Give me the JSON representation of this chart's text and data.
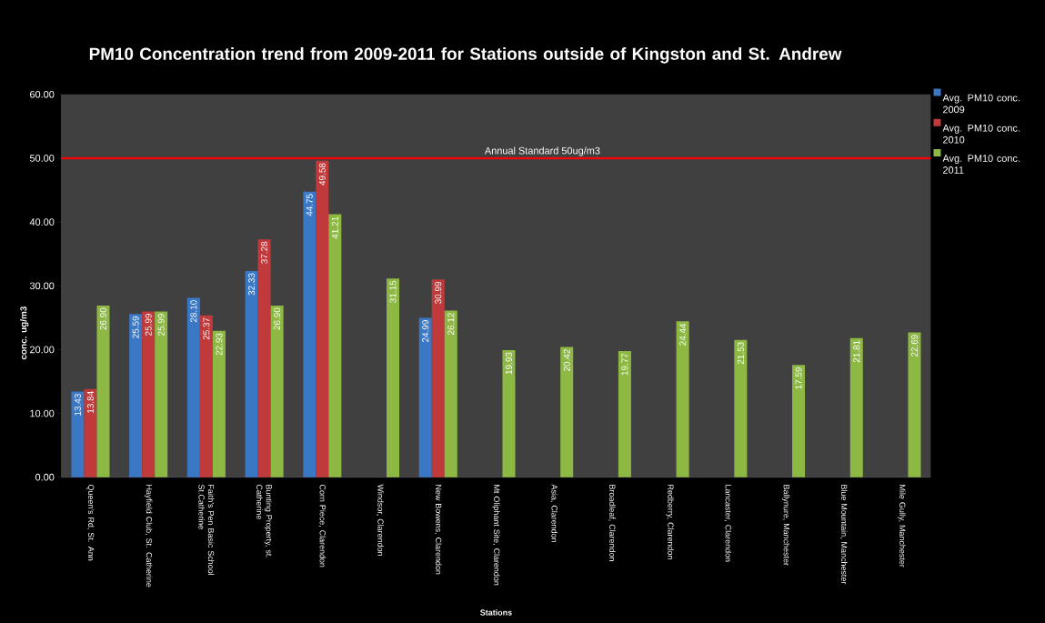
{
  "chart_data": {
    "type": "bar",
    "title": "PM10 Concentration trend from 2009-2011 for Stations outside of Kingston and St. Andrew",
    "xlabel": "Stations",
    "ylabel": "conc. ug/m3",
    "categories": [
      "Queen's Rd, St. Ann",
      "Hayfield Club, St. Catherine",
      "Faith's Pen Basic School St.Catherine",
      "Bunting Property, st. Catherine",
      "Corn Piece, Clarendon",
      "Windsor, Clarendon",
      "New Bowens, Clarendon",
      "Mt Oliphant Site, Clarendon",
      "Asia, Clarendon",
      "Broadleaf, Clarendon",
      "Redberry, Clarendon",
      "Lancaster, Clarendon",
      "Ballynure, Manchester",
      "Blue Mountain, Manchester",
      "Mile Gully, Manchester"
    ],
    "series": [
      {
        "name": "Avg. PM10 conc. 2009",
        "color": "#3a78c6",
        "values": [
          13.43,
          25.59,
          28.1,
          32.33,
          44.75,
          null,
          24.99,
          null,
          null,
          null,
          null,
          null,
          null,
          null,
          null
        ],
        "value_labels": [
          "13.43",
          "25.59",
          "28.10",
          "32.33",
          "44.75",
          null,
          "24.99",
          null,
          null,
          null,
          null,
          null,
          null,
          null,
          null
        ]
      },
      {
        "name": "Avg. PM10 conc. 2010",
        "color": "#c0393b",
        "values": [
          13.84,
          25.99,
          25.37,
          37.28,
          49.58,
          null,
          30.99,
          null,
          null,
          null,
          null,
          null,
          null,
          null,
          null
        ],
        "value_labels": [
          "13.84",
          "25.99",
          "25.37",
          "37.28",
          "49.58",
          null,
          "30.99",
          null,
          null,
          null,
          null,
          null,
          null,
          null,
          null
        ]
      },
      {
        "name": "Avg. PM10 conc. 2011",
        "color": "#8db843",
        "values": [
          26.9,
          25.99,
          22.93,
          26.9,
          41.21,
          31.15,
          26.12,
          19.93,
          20.42,
          19.77,
          24.44,
          21.53,
          17.59,
          21.81,
          22.69
        ],
        "value_labels": [
          "26.90",
          "25.99",
          "22.93",
          "26.90",
          "41.21",
          "31.15",
          "26.12",
          "19.93",
          "20.42",
          "19.77",
          "24.44",
          "21.53",
          "17.59",
          "21.81",
          "22.69"
        ]
      }
    ],
    "ylim": [
      0,
      60
    ],
    "yticks": [
      {
        "value": 0,
        "label": "0.00"
      },
      {
        "value": 10,
        "label": "10.00"
      },
      {
        "value": 20,
        "label": "20.00"
      },
      {
        "value": 30,
        "label": "30.00"
      },
      {
        "value": 40,
        "label": "40.00"
      },
      {
        "value": 50,
        "label": "50.00"
      },
      {
        "value": 60,
        "label": "60.00"
      }
    ],
    "ref_lines": [
      {
        "axis": "y",
        "value": 50,
        "label": "Annual Standard 50ug/m3",
        "color": "#ff0000"
      }
    ],
    "legend": "right"
  }
}
